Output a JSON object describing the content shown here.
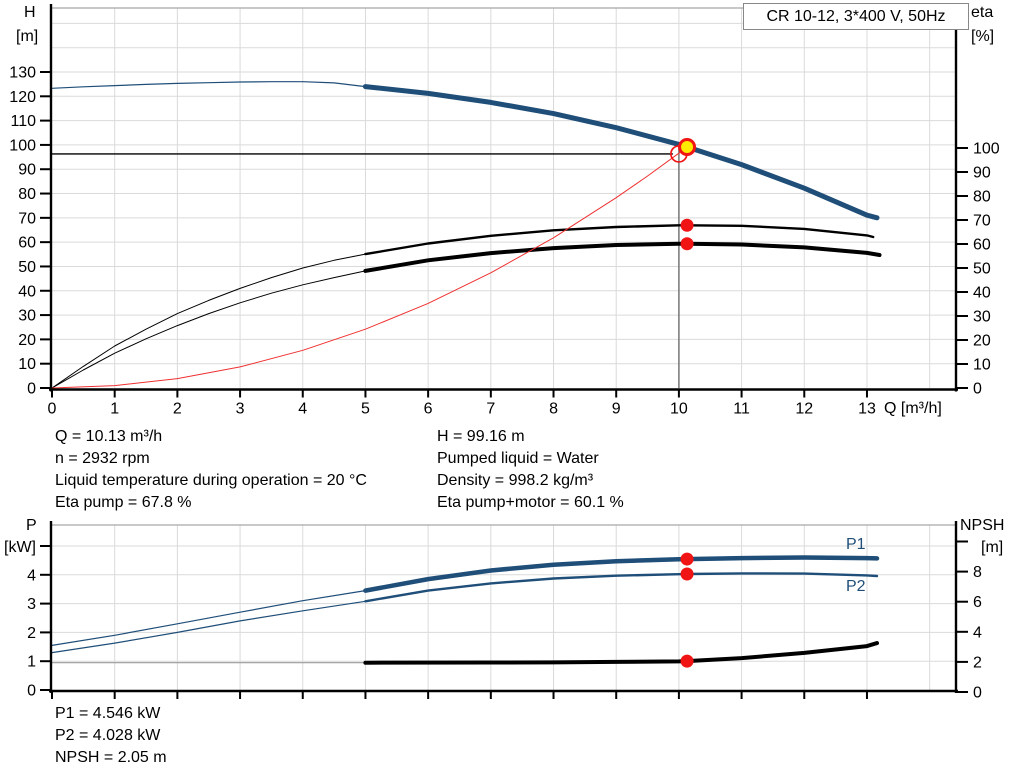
{
  "title_box": "CR 10-12, 3*400 V, 50Hz",
  "axis_units": {
    "h_top": "H",
    "h_unit": "[m]",
    "eta_top": "eta",
    "eta_unit": "[%]",
    "q_label": "Q [m³/h]",
    "p_top": "P",
    "p_unit": "[kW]",
    "npsh_top": "NPSH",
    "npsh_unit": "[m]"
  },
  "curve_labels": {
    "p1": "P1",
    "p2": "P2"
  },
  "annotations": {
    "col1": [
      "Q = 10.13 m³/h",
      "n = 2932 rpm",
      "Liquid temperature during operation = 20 °C",
      "Eta pump = 67.8 %"
    ],
    "col2": [
      "H = 99.16 m",
      "Pumped liquid = Water",
      "Density = 998.2 kg/m³",
      "Eta pump+motor = 60.1 %"
    ],
    "bottom": [
      "P1 = 4.546 kW",
      "P2 = 4.028 kW",
      "NPSH = 2.05 m"
    ]
  },
  "colors": {
    "curve_blue": "#1F4E79",
    "curve_black": "#000000",
    "system_red": "#F03030",
    "marker_red": "#F01414",
    "duty_yellow": "#FFEB00",
    "grid": "#DADADA",
    "frame": "#A6A6A6",
    "duty_vline": "#777777",
    "npsh_thin": "#9A9A9A"
  },
  "chart_data": [
    {
      "type": "line",
      "title": "CR 10-12, 3*400 V, 50Hz",
      "x_axis": {
        "label": "Q [m³/h]",
        "min": 0,
        "max": 14.4,
        "ticks": [
          0,
          1,
          2,
          3,
          4,
          5,
          6,
          7,
          8,
          9,
          10,
          11,
          12,
          13
        ],
        "show_labels": true
      },
      "y_left": {
        "label": "H [m]",
        "min": 0,
        "max": 156,
        "ticks": [
          0,
          10,
          20,
          30,
          40,
          50,
          60,
          70,
          80,
          90,
          100,
          110,
          120,
          130
        ],
        "max_label": 130
      },
      "y_right": {
        "label": "eta [%]",
        "min": 0,
        "max": 100,
        "ticks": [
          0,
          10,
          20,
          30,
          40,
          50,
          60,
          70,
          80,
          90,
          100
        ],
        "max_label": 100
      },
      "grid": true,
      "series": [
        {
          "name": "head-curve-thin",
          "axis": "left",
          "color": "#1F4E79",
          "width": 1.2,
          "points": [
            [
              0,
              123.3
            ],
            [
              0.5,
              123.9
            ],
            [
              1,
              124.4
            ],
            [
              1.5,
              124.9
            ],
            [
              2,
              125.3
            ],
            [
              2.5,
              125.6
            ],
            [
              3,
              125.9
            ],
            [
              3.5,
              126.0
            ],
            [
              4,
              126.0
            ],
            [
              4.5,
              125.5
            ],
            [
              5,
              124.0
            ]
          ]
        },
        {
          "name": "head-curve",
          "axis": "left",
          "color": "#1F4E79",
          "width": 5,
          "points": [
            [
              5,
              124.0
            ],
            [
              6,
              121.2
            ],
            [
              7,
              117.5
            ],
            [
              8,
              112.9
            ],
            [
              9,
              107.1
            ],
            [
              10,
              100.2
            ],
            [
              10.13,
              99.16
            ],
            [
              11,
              91.9
            ],
            [
              12,
              82.2
            ],
            [
              13,
              71.1
            ],
            [
              13.16,
              70.0
            ]
          ]
        },
        {
          "name": "eta-pump-thin",
          "axis": "right",
          "color": "#000000",
          "width": 1,
          "points": [
            [
              0,
              0
            ],
            [
              0.5,
              9
            ],
            [
              1,
              17.5
            ],
            [
              1.5,
              24.5
            ],
            [
              2,
              31
            ],
            [
              2.5,
              36.5
            ],
            [
              3,
              41.5
            ],
            [
              3.5,
              46
            ],
            [
              4,
              50
            ],
            [
              4.5,
              53.2
            ],
            [
              5,
              55.8
            ]
          ]
        },
        {
          "name": "eta-pump",
          "axis": "right",
          "color": "#000000",
          "width": 2.4,
          "points": [
            [
              5,
              55.8
            ],
            [
              6,
              60.2
            ],
            [
              7,
              63.4
            ],
            [
              8,
              65.7
            ],
            [
              9,
              67.1
            ],
            [
              10,
              67.8
            ],
            [
              10.13,
              67.8
            ],
            [
              11,
              67.6
            ],
            [
              12,
              66.3
            ],
            [
              13,
              63.6
            ],
            [
              13.1,
              62.9
            ]
          ]
        },
        {
          "name": "eta-pump-motor-thin",
          "axis": "right",
          "color": "#000000",
          "width": 1,
          "points": [
            [
              0,
              0
            ],
            [
              0.5,
              7.5
            ],
            [
              1,
              14.5
            ],
            [
              1.5,
              20.5
            ],
            [
              2,
              26
            ],
            [
              2.5,
              31
            ],
            [
              3,
              35.5
            ],
            [
              3.5,
              39.5
            ],
            [
              4,
              43
            ],
            [
              4.5,
              46
            ],
            [
              5,
              48.8
            ]
          ]
        },
        {
          "name": "eta-pump-motor",
          "axis": "right",
          "color": "#000000",
          "width": 4,
          "points": [
            [
              5,
              48.8
            ],
            [
              6,
              53.2
            ],
            [
              7,
              56.2
            ],
            [
              8,
              58.3
            ],
            [
              9,
              59.6
            ],
            [
              10,
              60.1
            ],
            [
              10.13,
              60.1
            ],
            [
              11,
              59.8
            ],
            [
              12,
              58.6
            ],
            [
              13,
              56.3
            ],
            [
              13.2,
              55.4
            ]
          ]
        },
        {
          "name": "system-curve",
          "axis": "left",
          "color": "#F03030",
          "width": 1,
          "points": [
            [
              0,
              0
            ],
            [
              1,
              0.97
            ],
            [
              2,
              3.87
            ],
            [
              3,
              8.7
            ],
            [
              4,
              15.5
            ],
            [
              5,
              24.2
            ],
            [
              6,
              34.8
            ],
            [
              7,
              47.4
            ],
            [
              8,
              61.8
            ],
            [
              9,
              78.3
            ],
            [
              9.5,
              87.2
            ],
            [
              10,
              96.6
            ],
            [
              10.13,
              99.16
            ]
          ]
        }
      ],
      "duty_point": {
        "q": 10.13,
        "h": 99.16
      },
      "requested_point": {
        "q": 10,
        "h": 96.3
      },
      "markers": [
        {
          "name": "eta-pump-point",
          "q": 10.13,
          "axis": "right",
          "value": 67.8
        },
        {
          "name": "eta-pump-motor-point",
          "q": 10.13,
          "axis": "right",
          "value": 60.1
        }
      ]
    },
    {
      "type": "line",
      "x_axis": {
        "label": "",
        "min": 0,
        "max": 14.4,
        "ticks": [
          0,
          1,
          2,
          3,
          4,
          5,
          6,
          7,
          8,
          9,
          10,
          11,
          12,
          13
        ],
        "show_labels": false
      },
      "y_left": {
        "label": "P [kW]",
        "min": 0,
        "max": 5.75,
        "ticks": [
          0,
          1,
          2,
          3,
          4,
          5
        ],
        "max_label": 4
      },
      "y_right": {
        "label": "NPSH [m]",
        "min": 0,
        "max": 11,
        "ticks": [
          0,
          2,
          4,
          6,
          8,
          10
        ],
        "max_label": 8
      },
      "grid": true,
      "series": [
        {
          "name": "p1-curve-thin",
          "axis": "left",
          "color": "#1F4E79",
          "width": 1.2,
          "points": [
            [
              0,
              1.55
            ],
            [
              1,
              1.9
            ],
            [
              2,
              2.3
            ],
            [
              3,
              2.7
            ],
            [
              4,
              3.1
            ],
            [
              5,
              3.45
            ]
          ]
        },
        {
          "name": "p1-curve",
          "axis": "left",
          "color": "#1F4E79",
          "width": 4.5,
          "points": [
            [
              5,
              3.45
            ],
            [
              6,
              3.85
            ],
            [
              7,
              4.15
            ],
            [
              8,
              4.35
            ],
            [
              9,
              4.47
            ],
            [
              10,
              4.54
            ],
            [
              10.13,
              4.546
            ],
            [
              11,
              4.58
            ],
            [
              12,
              4.6
            ],
            [
              13,
              4.58
            ],
            [
              13.16,
              4.57
            ]
          ]
        },
        {
          "name": "p2-curve-thin",
          "axis": "left",
          "color": "#1F4E79",
          "width": 1.2,
          "points": [
            [
              0,
              1.3
            ],
            [
              1,
              1.63
            ],
            [
              2,
              2.0
            ],
            [
              3,
              2.4
            ],
            [
              4,
              2.75
            ],
            [
              5,
              3.08
            ]
          ]
        },
        {
          "name": "p2-curve",
          "axis": "left",
          "color": "#1F4E79",
          "width": 2.4,
          "points": [
            [
              5,
              3.08
            ],
            [
              6,
              3.45
            ],
            [
              7,
              3.7
            ],
            [
              8,
              3.87
            ],
            [
              9,
              3.97
            ],
            [
              10,
              4.02
            ],
            [
              10.13,
              4.028
            ],
            [
              11,
              4.05
            ],
            [
              12,
              4.04
            ],
            [
              13,
              3.98
            ],
            [
              13.16,
              3.96
            ]
          ]
        },
        {
          "name": "npsh-curve-thin",
          "axis": "right",
          "color": "#9A9A9A",
          "width": 1.2,
          "points": [
            [
              0,
              1.95
            ],
            [
              2.5,
              1.95
            ],
            [
              5,
              1.95
            ]
          ]
        },
        {
          "name": "npsh-curve",
          "axis": "right",
          "color": "#000000",
          "width": 4,
          "points": [
            [
              5,
              1.95
            ],
            [
              7,
              1.96
            ],
            [
              8,
              1.97
            ],
            [
              9,
              2.0
            ],
            [
              10,
              2.03
            ],
            [
              10.13,
              2.05
            ],
            [
              11,
              2.25
            ],
            [
              12,
              2.6
            ],
            [
              13,
              3.05
            ],
            [
              13.16,
              3.25
            ]
          ]
        }
      ],
      "markers": [
        {
          "name": "p1-point",
          "q": 10.13,
          "axis": "left",
          "value": 4.546
        },
        {
          "name": "p2-point",
          "q": 10.13,
          "axis": "left",
          "value": 4.028
        },
        {
          "name": "npsh-point",
          "q": 10.13,
          "axis": "right",
          "value": 2.05
        }
      ]
    }
  ]
}
